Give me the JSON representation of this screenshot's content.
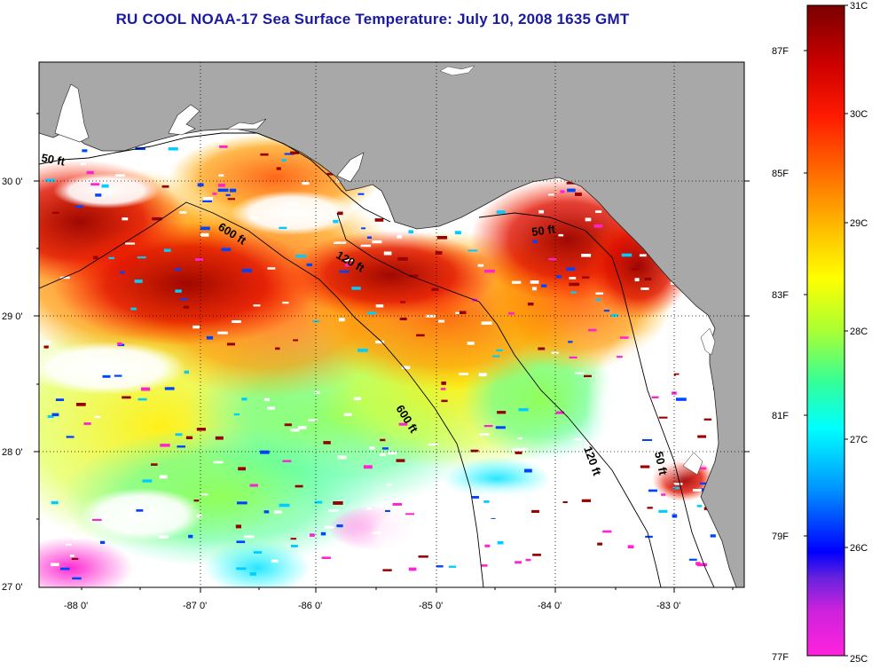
{
  "title": "RU COOL  NOAA-17  Sea Surface Temperature:  July 10, 2008 1635 GMT",
  "colors": {
    "land": "#a8a8a8",
    "ocean_nodata": "#ffffff",
    "scale": [
      "#ff1fd0",
      "#cc33cc",
      "#3311ff",
      "#00a0ff",
      "#00ffff",
      "#40ff80",
      "#ccff33",
      "#ffff00",
      "#ffaa00",
      "#ff3300",
      "#ff0000",
      "#990000"
    ]
  },
  "axes": {
    "lon_ticks": [
      "-88 0'",
      "-87 0'",
      "-86 0'",
      "-85 0'",
      "-84 0'",
      "-83 0'"
    ],
    "lat_ticks": [
      "27 0'",
      "28 0'",
      "29 0'",
      "30 0'"
    ]
  },
  "contours": [
    "50 ft",
    "600 ft",
    "120 ft",
    "50 ft",
    "600 ft",
    "120 ft",
    "50 ft"
  ],
  "colorbar": {
    "left_labels": [
      "87F",
      "85F",
      "83F",
      "81F",
      "79F",
      "77F"
    ],
    "right_labels": [
      "31C",
      "30C",
      "29C",
      "28C",
      "27C",
      "26C",
      "25C"
    ]
  }
}
